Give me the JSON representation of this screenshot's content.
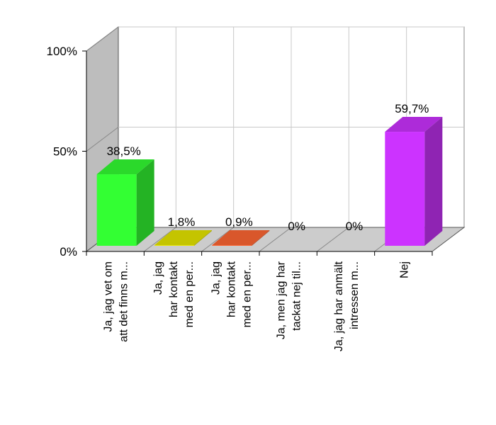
{
  "chart_data": {
    "type": "bar",
    "categories": [
      [
        "Ja, jag vet om",
        "att det finns m..."
      ],
      [
        "Ja, jag",
        "har kontakt",
        "med en per..."
      ],
      [
        "Ja, jag",
        "har kontakt",
        "med en per..."
      ],
      [
        "Ja, men jag har",
        "tackat nej til..."
      ],
      [
        "Ja, jag har anmält",
        "intressen m..."
      ],
      [
        "Nej"
      ]
    ],
    "values": [
      38.5,
      1.8,
      0.9,
      0,
      0,
      59.7
    ],
    "value_labels": [
      "38,5%",
      "1,8%",
      "0,9%",
      "0%",
      "0%",
      "59,7%"
    ],
    "colors": [
      "#33ff33",
      "#e6e600",
      "#ff6633",
      null,
      null,
      "#cc33ff"
    ],
    "ylim": [
      0,
      100
    ],
    "y_ticks": [
      {
        "value": 0,
        "label": "0%"
      },
      {
        "value": 50,
        "label": "50%"
      },
      {
        "value": 100,
        "label": "100%"
      }
    ],
    "grid": true,
    "three_d": true,
    "title": "",
    "xlabel": "",
    "ylabel": ""
  }
}
